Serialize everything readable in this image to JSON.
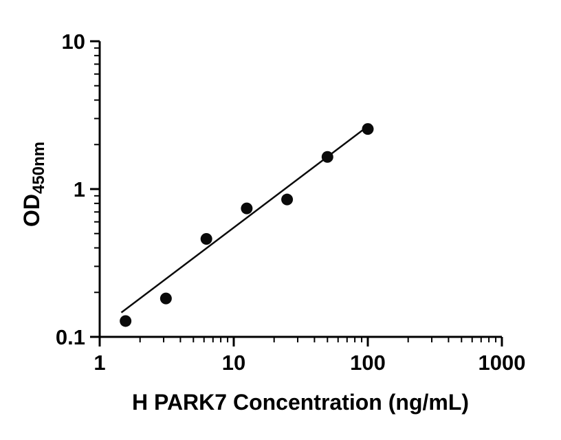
{
  "chart_data": {
    "type": "scatter",
    "title": "",
    "xlabel": "H PARK7 Concentration (ng/mL)",
    "ylabel_main": "OD",
    "ylabel_sub": "450nm",
    "x_scale": "log10",
    "y_scale": "log10",
    "xlim": [
      1,
      1000
    ],
    "ylim": [
      0.1,
      10
    ],
    "x_ticks": [
      1,
      10,
      100,
      1000
    ],
    "x_tick_labels": [
      "1",
      "10",
      "100",
      "1000"
    ],
    "y_ticks": [
      0.1,
      1,
      10
    ],
    "y_tick_labels": [
      "0.1",
      "1",
      "10"
    ],
    "grid": false,
    "legend": false,
    "points": {
      "x": [
        1.56,
        3.12,
        6.25,
        12.5,
        25,
        50,
        100
      ],
      "y": [
        0.128,
        0.182,
        0.46,
        0.74,
        0.85,
        1.65,
        2.55
      ]
    },
    "fit_line": {
      "x": [
        1.45,
        105
      ],
      "y": [
        0.146,
        2.75
      ]
    },
    "axis_color": "#000000",
    "marker_color": "#0a0a0a",
    "line_color": "#0a0a0a"
  }
}
